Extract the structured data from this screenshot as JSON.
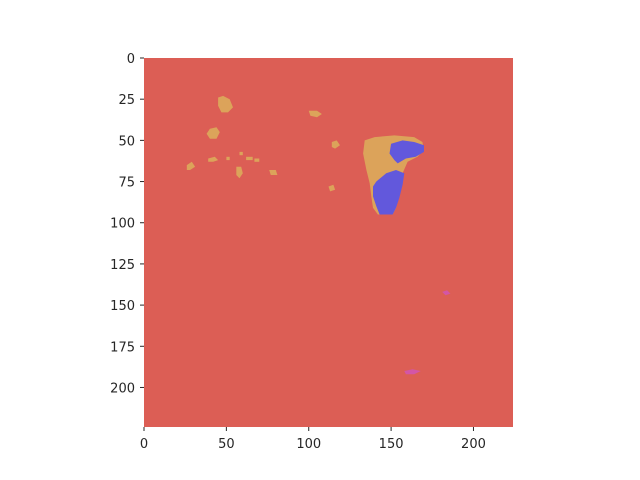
{
  "chart_data": {
    "type": "heatmap",
    "title": "",
    "xlabel": "",
    "ylabel": "",
    "x_range": [
      0,
      224
    ],
    "y_range": [
      0,
      224
    ],
    "y_inverted": true,
    "grid": false,
    "xticks": [
      {
        "value": 0,
        "label": "0"
      },
      {
        "value": 50,
        "label": "50"
      },
      {
        "value": 100,
        "label": "100"
      },
      {
        "value": 150,
        "label": "150"
      },
      {
        "value": 200,
        "label": "200"
      }
    ],
    "yticks": [
      {
        "value": 0,
        "label": "0"
      },
      {
        "value": 25,
        "label": "25"
      },
      {
        "value": 50,
        "label": "50"
      },
      {
        "value": 75,
        "label": "75"
      },
      {
        "value": 100,
        "label": "100"
      },
      {
        "value": 125,
        "label": "125"
      },
      {
        "value": 150,
        "label": "150"
      },
      {
        "value": 175,
        "label": "175"
      },
      {
        "value": 200,
        "label": "200"
      }
    ],
    "colors": {
      "background": "#dc5e55",
      "class_orange": "#dca35a",
      "class_blue": "#6258dc",
      "class_magenta": "#d356a6"
    },
    "regions": [
      {
        "class": "class_orange",
        "points": [
          [
            134,
            50
          ],
          [
            140,
            48
          ],
          [
            152,
            47
          ],
          [
            164,
            48
          ],
          [
            169,
            51
          ],
          [
            170,
            56
          ],
          [
            166,
            60
          ],
          [
            160,
            63
          ],
          [
            157,
            70
          ],
          [
            156,
            78
          ],
          [
            154,
            86
          ],
          [
            153,
            91
          ],
          [
            151,
            95
          ],
          [
            142,
            95
          ],
          [
            139,
            91
          ],
          [
            138,
            84
          ],
          [
            137,
            76
          ],
          [
            135,
            68
          ],
          [
            133,
            58
          ]
        ]
      },
      {
        "class": "class_blue",
        "points": [
          [
            150,
            52
          ],
          [
            157,
            50
          ],
          [
            164,
            51
          ],
          [
            170,
            53
          ],
          [
            170,
            57
          ],
          [
            165,
            60
          ],
          [
            159,
            61
          ],
          [
            154,
            64
          ],
          [
            152,
            62
          ],
          [
            149,
            58
          ]
        ]
      },
      {
        "class": "class_blue",
        "points": [
          [
            141,
            75
          ],
          [
            147,
            70
          ],
          [
            153,
            68
          ],
          [
            158,
            70
          ],
          [
            157,
            77
          ],
          [
            155,
            85
          ],
          [
            153,
            91
          ],
          [
            151,
            95
          ],
          [
            143,
            95
          ],
          [
            141,
            90
          ],
          [
            139,
            84
          ],
          [
            139,
            78
          ]
        ]
      },
      {
        "class": "class_orange",
        "points": [
          [
            45,
            24
          ],
          [
            48,
            23
          ],
          [
            52,
            25
          ],
          [
            54,
            30
          ],
          [
            51,
            33
          ],
          [
            47,
            33
          ],
          [
            45,
            29
          ]
        ]
      },
      {
        "class": "class_orange",
        "points": [
          [
            40,
            43
          ],
          [
            44,
            42
          ],
          [
            46,
            45
          ],
          [
            44,
            49
          ],
          [
            40,
            49
          ],
          [
            38,
            46
          ]
        ]
      },
      {
        "class": "class_orange",
        "points": [
          [
            100,
            32
          ],
          [
            105,
            32
          ],
          [
            108,
            34
          ],
          [
            105,
            36
          ],
          [
            101,
            35
          ]
        ]
      },
      {
        "class": "class_orange",
        "points": [
          [
            114,
            51
          ],
          [
            117,
            50
          ],
          [
            119,
            53
          ],
          [
            116,
            55
          ],
          [
            114,
            54
          ]
        ]
      },
      {
        "class": "class_orange",
        "points": [
          [
            26,
            65
          ],
          [
            29,
            63
          ],
          [
            31,
            66
          ],
          [
            28,
            68
          ],
          [
            26,
            68
          ]
        ]
      },
      {
        "class": "class_orange",
        "points": [
          [
            39,
            61
          ],
          [
            43,
            60
          ],
          [
            45,
            62
          ],
          [
            42,
            63
          ],
          [
            39,
            63
          ]
        ]
      },
      {
        "class": "class_orange",
        "points": [
          [
            56,
            66
          ],
          [
            59,
            66
          ],
          [
            60,
            70
          ],
          [
            58,
            73
          ],
          [
            56,
            71
          ]
        ]
      },
      {
        "class": "class_orange",
        "points": [
          [
            76,
            68
          ],
          [
            80,
            68
          ],
          [
            81,
            71
          ],
          [
            77,
            71
          ]
        ]
      },
      {
        "class": "class_orange",
        "points": [
          [
            112,
            78
          ],
          [
            115,
            77
          ],
          [
            116,
            80
          ],
          [
            113,
            81
          ]
        ]
      },
      {
        "class": "class_orange",
        "points": [
          [
            50,
            60
          ],
          [
            52,
            60
          ],
          [
            52,
            62
          ],
          [
            50,
            62
          ]
        ]
      },
      {
        "class": "class_orange",
        "points": [
          [
            62,
            60
          ],
          [
            66,
            60
          ],
          [
            66,
            62
          ],
          [
            62,
            62
          ]
        ]
      },
      {
        "class": "class_orange",
        "points": [
          [
            67,
            61
          ],
          [
            70,
            61
          ],
          [
            70,
            63
          ],
          [
            67,
            63
          ]
        ]
      },
      {
        "class": "class_orange",
        "points": [
          [
            58,
            57
          ],
          [
            60,
            57
          ],
          [
            60,
            59
          ],
          [
            58,
            59
          ]
        ]
      },
      {
        "class": "class_magenta",
        "points": [
          [
            158,
            190
          ],
          [
            163,
            189
          ],
          [
            168,
            190
          ],
          [
            164,
            192
          ],
          [
            159,
            192
          ]
        ]
      },
      {
        "class": "class_magenta",
        "points": [
          [
            181,
            142
          ],
          [
            184,
            141
          ],
          [
            186,
            143
          ],
          [
            183,
            144
          ]
        ]
      }
    ]
  }
}
